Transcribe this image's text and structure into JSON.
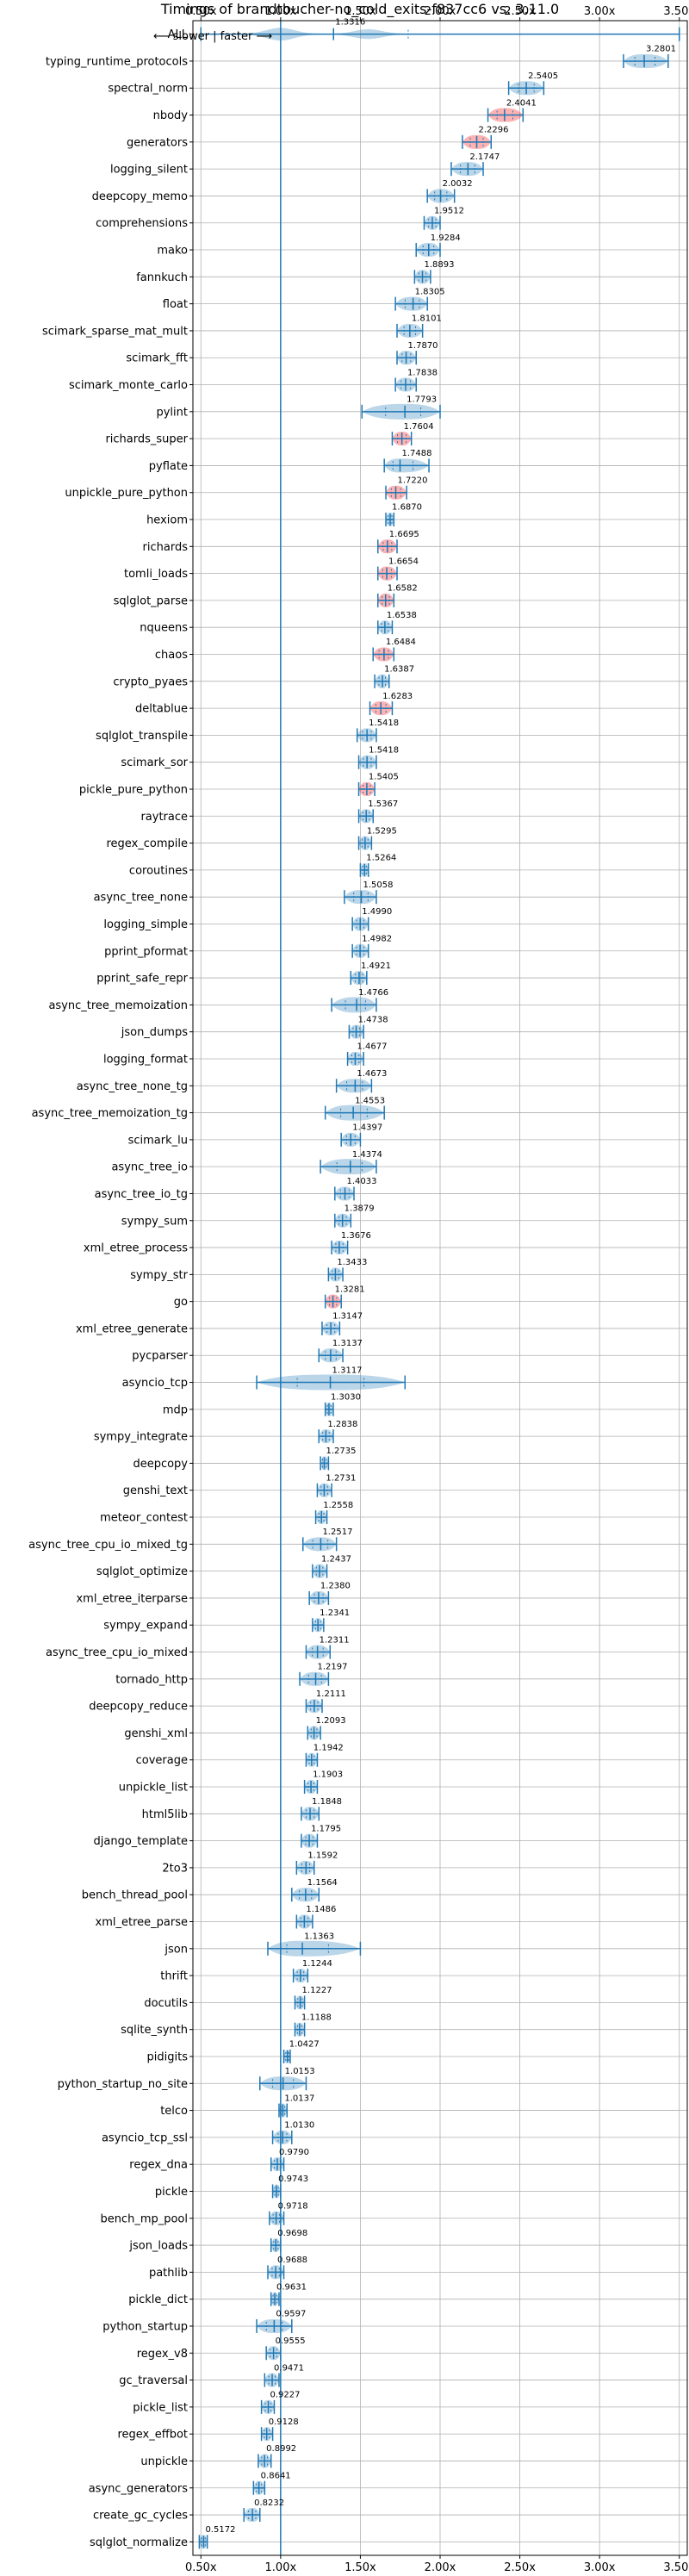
{
  "chart_data": {
    "type": "violin",
    "title": "Timings of brandtbucher-no_cold_exits-f837cc6 vs. 3.11.0",
    "annotation": "⟵ slower | faster ⟶",
    "xlim": [
      0.45,
      3.55
    ],
    "xticks": [
      0.5,
      1.0,
      1.5,
      2.0,
      2.5,
      3.0,
      3.5
    ],
    "xtick_labels": [
      "0.50x",
      "1.00x",
      "1.50x",
      "2.00x",
      "2.50x",
      "3.00x",
      "3.50x"
    ],
    "baseline": 1.0,
    "grid": true,
    "colors": {
      "violin": "#1f77b4",
      "slower": "#ff0000",
      "median": "#1f77b4",
      "baseline": "#1f77b4"
    },
    "benchmarks": [
      {
        "name": "ALL",
        "value": 1.3316,
        "min": 0.5,
        "max": 3.5,
        "q1": 1.33,
        "q3": 1.8,
        "kind": "all"
      },
      {
        "name": "typing_runtime_protocols",
        "value": 3.2801,
        "min": 3.15,
        "max": 3.43
      },
      {
        "name": "spectral_norm",
        "value": 2.5405,
        "min": 2.43,
        "max": 2.65
      },
      {
        "name": "nbody",
        "value": 2.4041,
        "min": 2.3,
        "max": 2.52,
        "color": "red"
      },
      {
        "name": "generators",
        "value": 2.2296,
        "min": 2.14,
        "max": 2.32,
        "color": "red"
      },
      {
        "name": "logging_silent",
        "value": 2.1747,
        "min": 2.07,
        "max": 2.27
      },
      {
        "name": "deepcopy_memo",
        "value": 2.0032,
        "min": 1.92,
        "max": 2.09
      },
      {
        "name": "comprehensions",
        "value": 1.9512,
        "min": 1.9,
        "max": 2.0
      },
      {
        "name": "mako",
        "value": 1.9284,
        "min": 1.85,
        "max": 2.0
      },
      {
        "name": "fannkuch",
        "value": 1.8893,
        "min": 1.84,
        "max": 1.94
      },
      {
        "name": "float",
        "value": 1.8305,
        "min": 1.72,
        "max": 1.92
      },
      {
        "name": "scimark_sparse_mat_mult",
        "value": 1.8101,
        "min": 1.73,
        "max": 1.89
      },
      {
        "name": "scimark_fft",
        "value": 1.787,
        "min": 1.73,
        "max": 1.85
      },
      {
        "name": "scimark_monte_carlo",
        "value": 1.7838,
        "min": 1.72,
        "max": 1.85
      },
      {
        "name": "pylint",
        "value": 1.7793,
        "min": 1.51,
        "max": 2.0,
        "wide": true
      },
      {
        "name": "richards_super",
        "value": 1.7604,
        "min": 1.7,
        "max": 1.82,
        "color": "red"
      },
      {
        "name": "pyflate",
        "value": 1.7488,
        "min": 1.65,
        "max": 1.93
      },
      {
        "name": "unpickle_pure_python",
        "value": 1.722,
        "min": 1.66,
        "max": 1.79,
        "color": "red"
      },
      {
        "name": "hexiom",
        "value": 1.687,
        "min": 1.66,
        "max": 1.71
      },
      {
        "name": "richards",
        "value": 1.6695,
        "min": 1.61,
        "max": 1.73,
        "color": "red"
      },
      {
        "name": "tomli_loads",
        "value": 1.6654,
        "min": 1.61,
        "max": 1.73,
        "color": "red"
      },
      {
        "name": "sqlglot_parse",
        "value": 1.6582,
        "min": 1.61,
        "max": 1.71,
        "color": "red"
      },
      {
        "name": "nqueens",
        "value": 1.6538,
        "min": 1.61,
        "max": 1.7
      },
      {
        "name": "chaos",
        "value": 1.6484,
        "min": 1.58,
        "max": 1.71,
        "color": "red"
      },
      {
        "name": "crypto_pyaes",
        "value": 1.6387,
        "min": 1.59,
        "max": 1.68
      },
      {
        "name": "deltablue",
        "value": 1.6283,
        "min": 1.56,
        "max": 1.7,
        "color": "red"
      },
      {
        "name": "sqlglot_transpile",
        "value": 1.5418,
        "min": 1.48,
        "max": 1.6
      },
      {
        "name": "scimark_sor",
        "value": 1.5418,
        "min": 1.49,
        "max": 1.6
      },
      {
        "name": "pickle_pure_python",
        "value": 1.5405,
        "min": 1.49,
        "max": 1.59,
        "color": "red"
      },
      {
        "name": "raytrace",
        "value": 1.5367,
        "min": 1.49,
        "max": 1.58
      },
      {
        "name": "regex_compile",
        "value": 1.5295,
        "min": 1.49,
        "max": 1.57
      },
      {
        "name": "coroutines",
        "value": 1.5264,
        "min": 1.5,
        "max": 1.55
      },
      {
        "name": "async_tree_none",
        "value": 1.5058,
        "min": 1.4,
        "max": 1.6
      },
      {
        "name": "logging_simple",
        "value": 1.499,
        "min": 1.45,
        "max": 1.55
      },
      {
        "name": "pprint_pformat",
        "value": 1.4982,
        "min": 1.45,
        "max": 1.55
      },
      {
        "name": "pprint_safe_repr",
        "value": 1.4921,
        "min": 1.44,
        "max": 1.54
      },
      {
        "name": "async_tree_memoization",
        "value": 1.4766,
        "min": 1.32,
        "max": 1.6,
        "wide": true
      },
      {
        "name": "json_dumps",
        "value": 1.4738,
        "min": 1.43,
        "max": 1.52
      },
      {
        "name": "logging_format",
        "value": 1.4677,
        "min": 1.42,
        "max": 1.52
      },
      {
        "name": "async_tree_none_tg",
        "value": 1.4673,
        "min": 1.35,
        "max": 1.57
      },
      {
        "name": "async_tree_memoization_tg",
        "value": 1.4553,
        "min": 1.28,
        "max": 1.65,
        "wide": true
      },
      {
        "name": "scimark_lu",
        "value": 1.4397,
        "min": 1.38,
        "max": 1.5
      },
      {
        "name": "async_tree_io",
        "value": 1.4374,
        "min": 1.25,
        "max": 1.6,
        "wide": true
      },
      {
        "name": "async_tree_io_tg",
        "value": 1.4033,
        "min": 1.34,
        "max": 1.46
      },
      {
        "name": "sympy_sum",
        "value": 1.3879,
        "min": 1.34,
        "max": 1.44
      },
      {
        "name": "xml_etree_process",
        "value": 1.3676,
        "min": 1.32,
        "max": 1.42
      },
      {
        "name": "sympy_str",
        "value": 1.3433,
        "min": 1.3,
        "max": 1.39
      },
      {
        "name": "go",
        "value": 1.3281,
        "min": 1.28,
        "max": 1.38,
        "color": "red"
      },
      {
        "name": "xml_etree_generate",
        "value": 1.3147,
        "min": 1.26,
        "max": 1.37
      },
      {
        "name": "pycparser",
        "value": 1.3137,
        "min": 1.24,
        "max": 1.39
      },
      {
        "name": "asyncio_tcp",
        "value": 1.3117,
        "min": 0.85,
        "max": 1.78,
        "wide": true
      },
      {
        "name": "mdp",
        "value": 1.303,
        "min": 1.28,
        "max": 1.33
      },
      {
        "name": "sympy_integrate",
        "value": 1.2838,
        "min": 1.24,
        "max": 1.33
      },
      {
        "name": "deepcopy",
        "value": 1.2735,
        "min": 1.25,
        "max": 1.3
      },
      {
        "name": "genshi_text",
        "value": 1.2731,
        "min": 1.23,
        "max": 1.32
      },
      {
        "name": "meteor_contest",
        "value": 1.2558,
        "min": 1.22,
        "max": 1.29
      },
      {
        "name": "async_tree_cpu_io_mixed_tg",
        "value": 1.2517,
        "min": 1.14,
        "max": 1.35
      },
      {
        "name": "sqlglot_optimize",
        "value": 1.2437,
        "min": 1.2,
        "max": 1.29
      },
      {
        "name": "xml_etree_iterparse",
        "value": 1.238,
        "min": 1.18,
        "max": 1.3
      },
      {
        "name": "sympy_expand",
        "value": 1.2341,
        "min": 1.2,
        "max": 1.27
      },
      {
        "name": "async_tree_cpu_io_mixed",
        "value": 1.2311,
        "min": 1.16,
        "max": 1.31
      },
      {
        "name": "tornado_http",
        "value": 1.2197,
        "min": 1.12,
        "max": 1.3
      },
      {
        "name": "deepcopy_reduce",
        "value": 1.2111,
        "min": 1.16,
        "max": 1.26
      },
      {
        "name": "genshi_xml",
        "value": 1.2093,
        "min": 1.17,
        "max": 1.25
      },
      {
        "name": "coverage",
        "value": 1.1942,
        "min": 1.16,
        "max": 1.23
      },
      {
        "name": "unpickle_list",
        "value": 1.1903,
        "min": 1.15,
        "max": 1.23
      },
      {
        "name": "html5lib",
        "value": 1.1848,
        "min": 1.13,
        "max": 1.24
      },
      {
        "name": "django_template",
        "value": 1.1795,
        "min": 1.13,
        "max": 1.23
      },
      {
        "name": "2to3",
        "value": 1.1592,
        "min": 1.1,
        "max": 1.21
      },
      {
        "name": "bench_thread_pool",
        "value": 1.1564,
        "min": 1.07,
        "max": 1.24
      },
      {
        "name": "xml_etree_parse",
        "value": 1.1486,
        "min": 1.1,
        "max": 1.2
      },
      {
        "name": "json",
        "value": 1.1363,
        "min": 0.92,
        "max": 1.5,
        "wide": true
      },
      {
        "name": "thrift",
        "value": 1.1244,
        "min": 1.08,
        "max": 1.17
      },
      {
        "name": "docutils",
        "value": 1.1227,
        "min": 1.09,
        "max": 1.15
      },
      {
        "name": "sqlite_synth",
        "value": 1.1188,
        "min": 1.09,
        "max": 1.15
      },
      {
        "name": "pidigits",
        "value": 1.0427,
        "min": 1.02,
        "max": 1.06
      },
      {
        "name": "python_startup_no_site",
        "value": 1.0153,
        "min": 0.87,
        "max": 1.16
      },
      {
        "name": "telco",
        "value": 1.0137,
        "min": 0.99,
        "max": 1.04
      },
      {
        "name": "asyncio_tcp_ssl",
        "value": 1.013,
        "min": 0.95,
        "max": 1.07
      },
      {
        "name": "regex_dna",
        "value": 0.979,
        "min": 0.94,
        "max": 1.02
      },
      {
        "name": "pickle",
        "value": 0.9743,
        "min": 0.95,
        "max": 1.0
      },
      {
        "name": "bench_mp_pool",
        "value": 0.9718,
        "min": 0.93,
        "max": 1.02
      },
      {
        "name": "json_loads",
        "value": 0.9698,
        "min": 0.94,
        "max": 1.0
      },
      {
        "name": "pathlib",
        "value": 0.9688,
        "min": 0.92,
        "max": 1.02
      },
      {
        "name": "pickle_dict",
        "value": 0.9631,
        "min": 0.94,
        "max": 0.99
      },
      {
        "name": "python_startup",
        "value": 0.9597,
        "min": 0.85,
        "max": 1.07
      },
      {
        "name": "regex_v8",
        "value": 0.9555,
        "min": 0.91,
        "max": 1.0
      },
      {
        "name": "gc_traversal",
        "value": 0.9471,
        "min": 0.9,
        "max": 0.99
      },
      {
        "name": "pickle_list",
        "value": 0.9227,
        "min": 0.88,
        "max": 0.96
      },
      {
        "name": "regex_effbot",
        "value": 0.9128,
        "min": 0.88,
        "max": 0.95
      },
      {
        "name": "unpickle",
        "value": 0.8992,
        "min": 0.86,
        "max": 0.94
      },
      {
        "name": "async_generators",
        "value": 0.8641,
        "min": 0.83,
        "max": 0.9
      },
      {
        "name": "create_gc_cycles",
        "value": 0.8232,
        "min": 0.77,
        "max": 0.87
      },
      {
        "name": "sqlglot_normalize",
        "value": 0.5172,
        "min": 0.49,
        "max": 0.54
      }
    ]
  }
}
